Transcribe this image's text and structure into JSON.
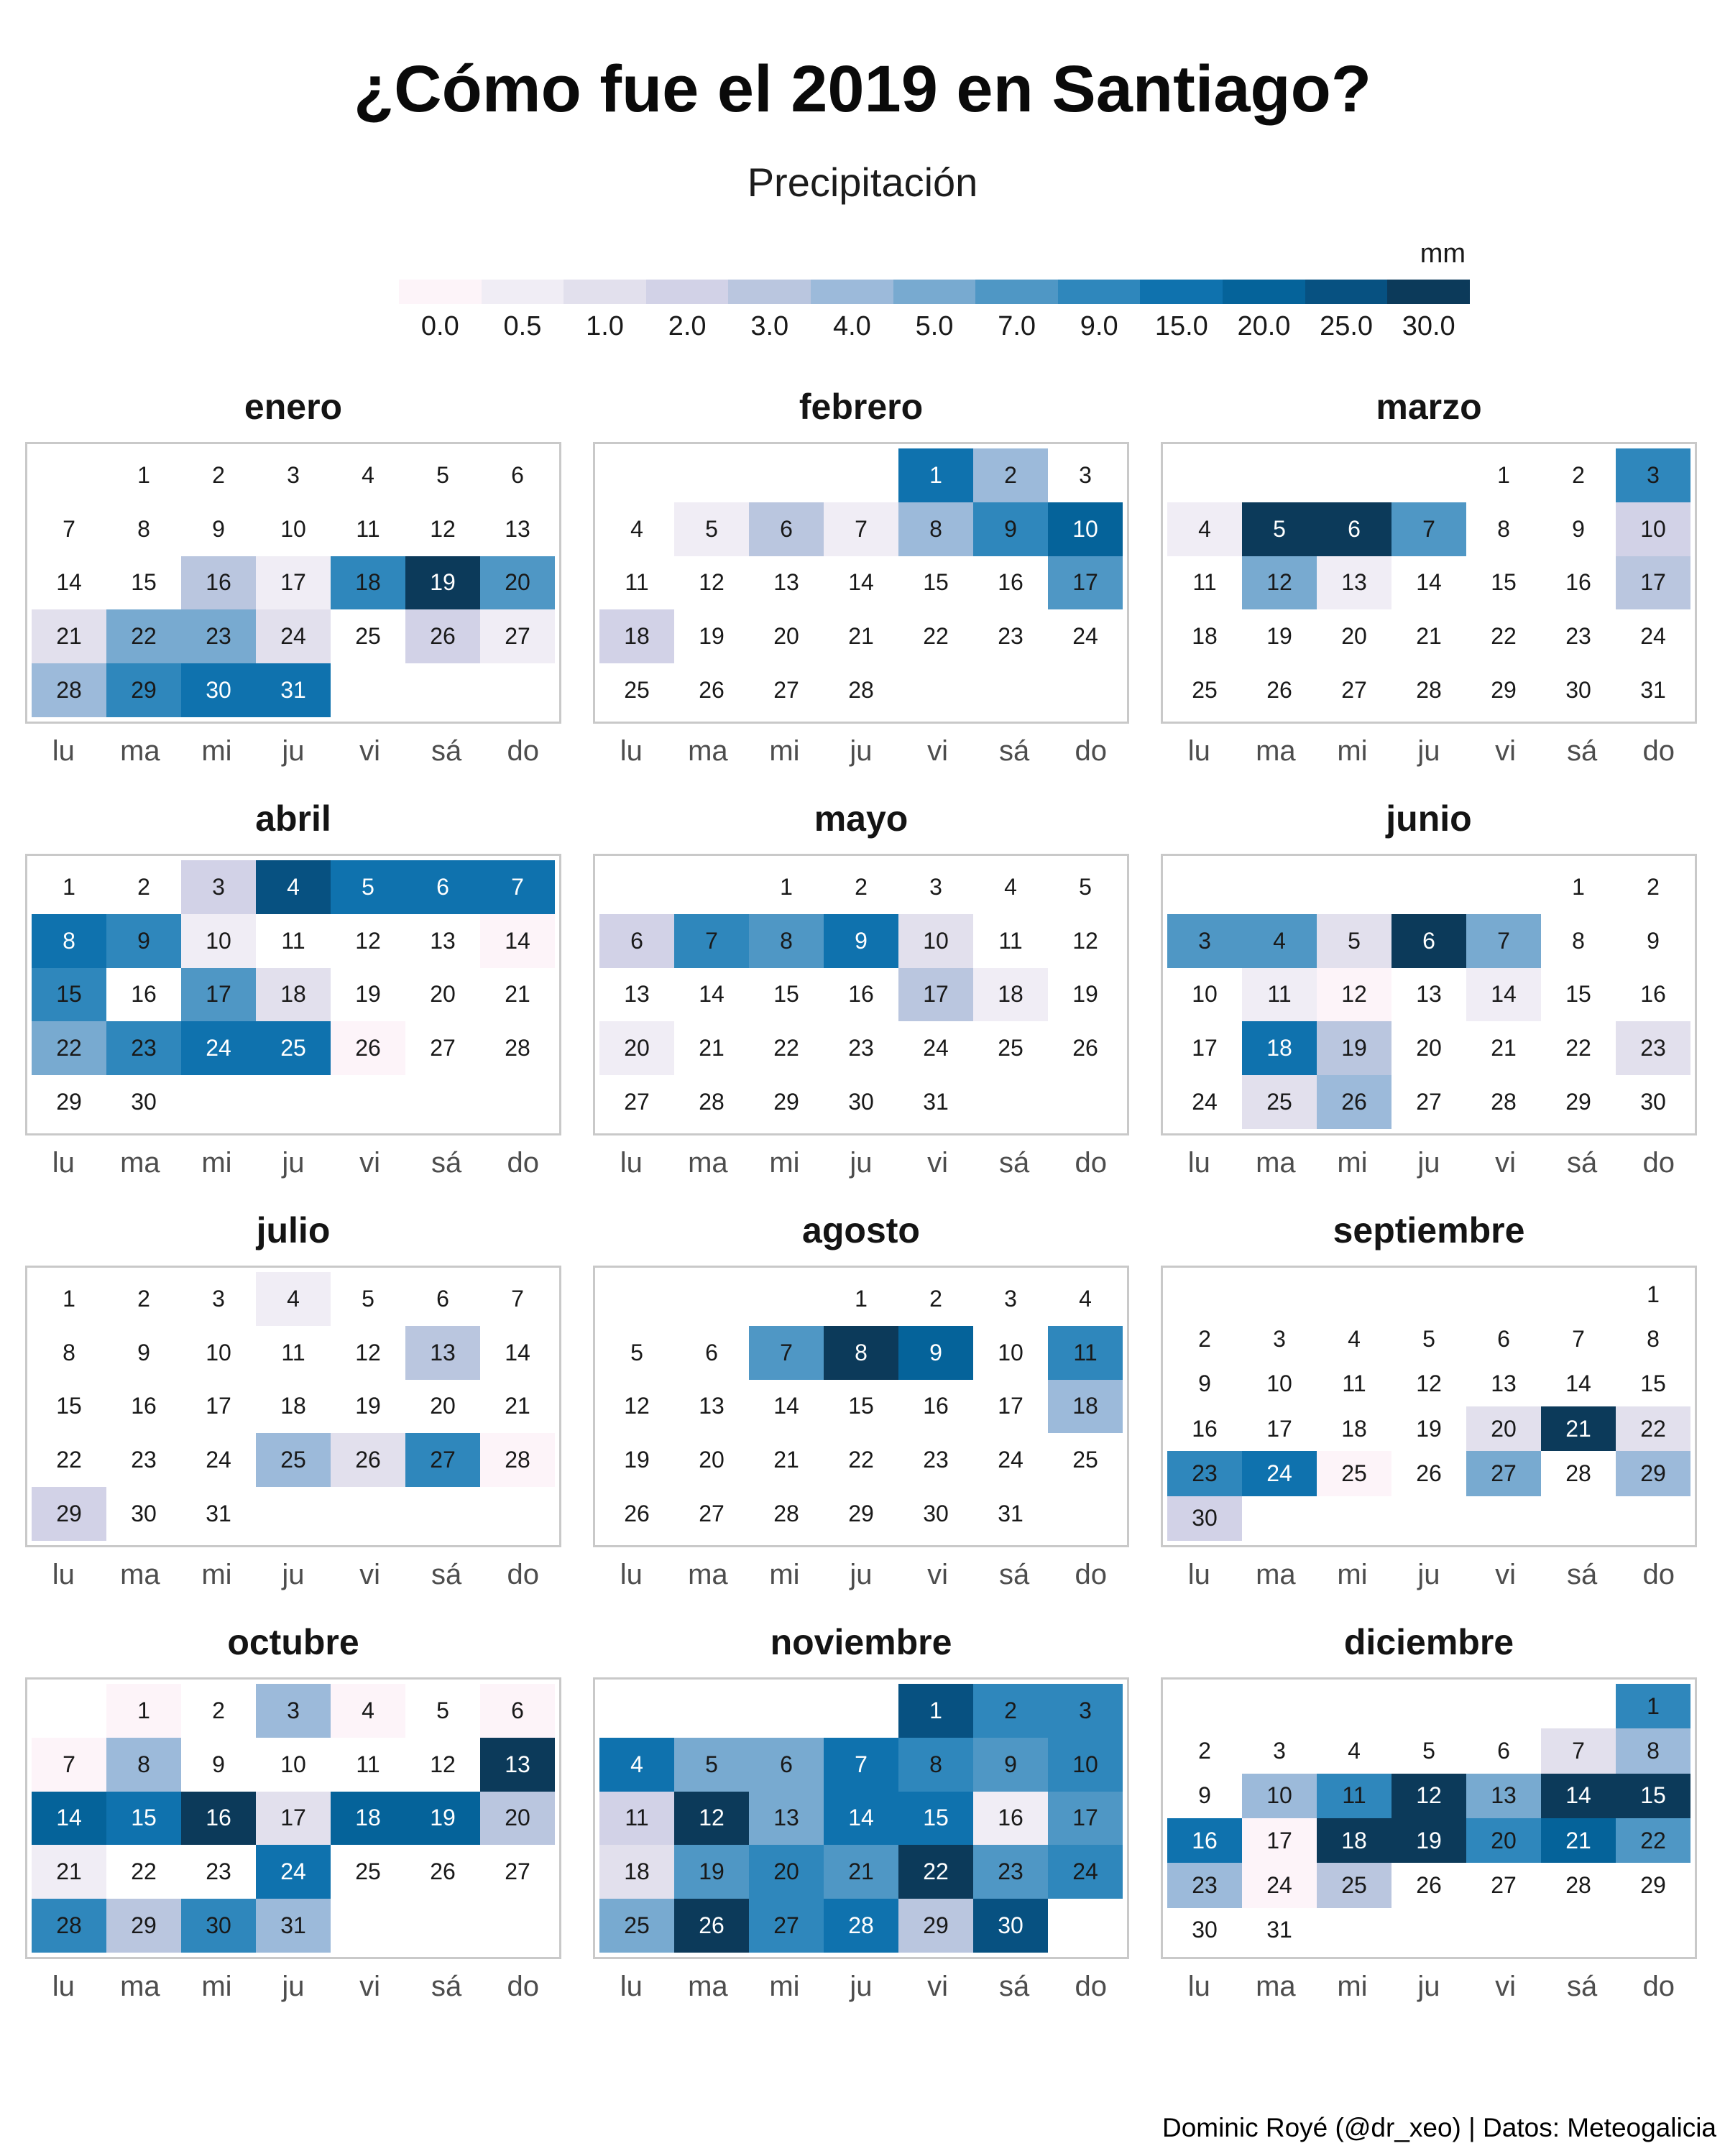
{
  "header": {
    "title": "¿Cómo fue el 2019 en Santiago?",
    "subtitle": "Precipitación"
  },
  "footer": {
    "credit": "Dominic Royé (@dr_xeo) | Datos: Meteogalicia"
  },
  "style": {
    "white_text_min_level": 9,
    "day_text_color": "#191919",
    "day_text_color_dark_cell": "#ffffff",
    "empty_cell_color": "#ffffff",
    "panel_border_color": "#c9c9c9",
    "weekday_label_color": "#4d4d4d"
  },
  "chart_data": {
    "type": "heatmap",
    "title": "¿Cómo fue el 2019 en Santiago?",
    "subtitle": "Precipitación",
    "unit": "mm",
    "legend_position": "top-right",
    "bin_labels": [
      "0.0",
      "0.5",
      "1.0",
      "2.0",
      "3.0",
      "4.0",
      "5.0",
      "7.0",
      "9.0",
      "15.0",
      "20.0",
      "25.0",
      "30.0"
    ],
    "colors": [
      "#fdf4f9",
      "#f0edf5",
      "#e2e0ed",
      "#d2d2e7",
      "#bac6df",
      "#9cbada",
      "#78aad0",
      "#4f97c5",
      "#2f87bc",
      "#0f72ae",
      "#05639a",
      "#075181",
      "#0c3a5a"
    ],
    "weekday_labels": [
      "lu",
      "ma",
      "mi",
      "ju",
      "vi",
      "sá",
      "do"
    ],
    "week_start": "monday",
    "note": "day_levels: index 0 = day 1; value = precipitation bin index into colors/bin_labels; null = no fill (blank day)",
    "months": [
      {
        "name": "enero",
        "first_weekday": 1,
        "n_days": 31,
        "day_levels": [
          null,
          null,
          null,
          null,
          null,
          null,
          null,
          null,
          null,
          null,
          null,
          null,
          null,
          null,
          null,
          4,
          1,
          8,
          12,
          7,
          2,
          6,
          6,
          2,
          null,
          3,
          1,
          5,
          8,
          9,
          9
        ]
      },
      {
        "name": "febrero",
        "first_weekday": 4,
        "n_days": 28,
        "day_levels": [
          9,
          5,
          null,
          null,
          1,
          4,
          1,
          5,
          8,
          10,
          null,
          null,
          null,
          null,
          null,
          null,
          7,
          3,
          null,
          null,
          null,
          null,
          null,
          null,
          null,
          null,
          null,
          null
        ]
      },
      {
        "name": "marzo",
        "first_weekday": 4,
        "n_days": 31,
        "day_levels": [
          null,
          null,
          8,
          1,
          12,
          12,
          7,
          null,
          null,
          3,
          null,
          6,
          1,
          null,
          null,
          null,
          4,
          null,
          null,
          null,
          null,
          null,
          null,
          null,
          null,
          null,
          null,
          null,
          null,
          null,
          null
        ]
      },
      {
        "name": "abril",
        "first_weekday": 0,
        "n_days": 30,
        "day_levels": [
          null,
          null,
          3,
          11,
          9,
          9,
          9,
          9,
          8,
          1,
          null,
          null,
          null,
          0,
          8,
          null,
          7,
          2,
          null,
          null,
          null,
          6,
          8,
          9,
          9,
          0,
          null,
          null,
          null,
          null
        ]
      },
      {
        "name": "mayo",
        "first_weekday": 2,
        "n_days": 31,
        "day_levels": [
          null,
          null,
          null,
          null,
          null,
          3,
          8,
          7,
          9,
          2,
          null,
          null,
          null,
          null,
          null,
          null,
          4,
          1,
          null,
          1,
          null,
          null,
          null,
          null,
          null,
          null,
          null,
          null,
          null,
          null,
          null
        ]
      },
      {
        "name": "junio",
        "first_weekday": 5,
        "n_days": 30,
        "day_levels": [
          null,
          null,
          7,
          7,
          2,
          12,
          6,
          null,
          null,
          null,
          1,
          0,
          null,
          1,
          null,
          null,
          null,
          9,
          4,
          null,
          null,
          null,
          2,
          null,
          2,
          5,
          null,
          null,
          null,
          null
        ]
      },
      {
        "name": "julio",
        "first_weekday": 0,
        "n_days": 31,
        "day_levels": [
          null,
          null,
          null,
          1,
          null,
          null,
          null,
          null,
          null,
          null,
          null,
          null,
          4,
          null,
          null,
          null,
          null,
          null,
          null,
          null,
          null,
          null,
          null,
          null,
          5,
          2,
          8,
          0,
          3,
          null,
          null
        ]
      },
      {
        "name": "agosto",
        "first_weekday": 3,
        "n_days": 31,
        "day_levels": [
          null,
          null,
          null,
          null,
          null,
          null,
          7,
          12,
          10,
          null,
          8,
          null,
          null,
          null,
          null,
          null,
          null,
          5,
          null,
          null,
          null,
          null,
          null,
          null,
          null,
          null,
          null,
          null,
          null,
          null,
          null
        ]
      },
      {
        "name": "septiembre",
        "first_weekday": 6,
        "n_days": 30,
        "day_levels": [
          null,
          null,
          null,
          null,
          null,
          null,
          null,
          null,
          null,
          null,
          null,
          null,
          null,
          null,
          null,
          null,
          null,
          null,
          null,
          2,
          12,
          2,
          8,
          9,
          0,
          null,
          6,
          null,
          5,
          3
        ]
      },
      {
        "name": "octubre",
        "first_weekday": 1,
        "n_days": 31,
        "day_levels": [
          0,
          null,
          5,
          0,
          null,
          0,
          0,
          5,
          null,
          null,
          null,
          null,
          12,
          10,
          9,
          12,
          2,
          10,
          10,
          4,
          1,
          null,
          null,
          9,
          null,
          null,
          null,
          8,
          4,
          8,
          5
        ]
      },
      {
        "name": "noviembre",
        "first_weekday": 4,
        "n_days": 30,
        "day_levels": [
          11,
          8,
          8,
          9,
          6,
          6,
          9,
          8,
          7,
          8,
          3,
          12,
          6,
          9,
          9,
          1,
          7,
          2,
          7,
          8,
          7,
          12,
          7,
          8,
          6,
          12,
          8,
          9,
          4,
          11
        ]
      },
      {
        "name": "diciembre",
        "first_weekday": 6,
        "n_days": 31,
        "day_levels": [
          8,
          null,
          null,
          null,
          null,
          null,
          2,
          5,
          null,
          5,
          8,
          12,
          6,
          12,
          12,
          9,
          0,
          12,
          12,
          8,
          10,
          7,
          5,
          0,
          4,
          null,
          null,
          null,
          null,
          null,
          null
        ]
      }
    ]
  }
}
